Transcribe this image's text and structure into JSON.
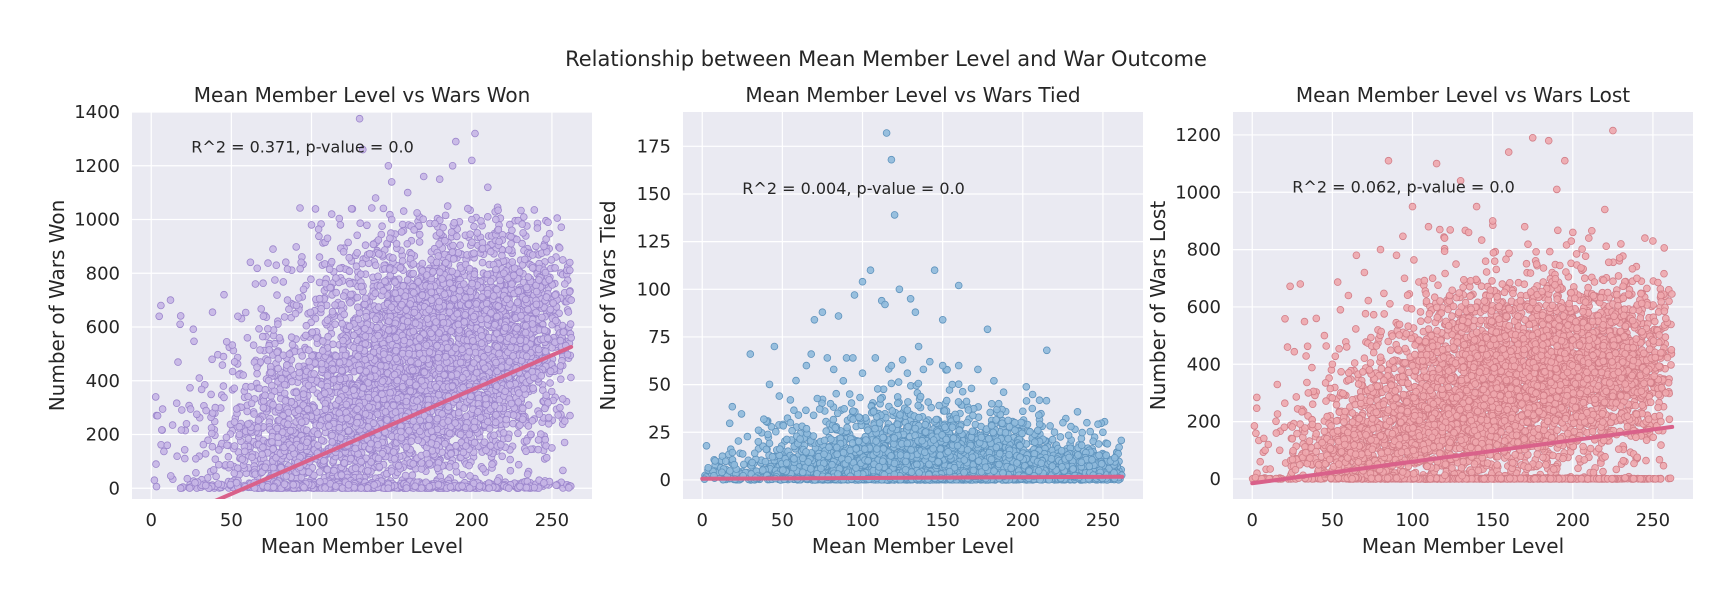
{
  "figure": {
    "suptitle": "Relationship between Mean Member Level and War Outcome"
  },
  "colors": {
    "panel_bg": "#eaeaf2",
    "grid": "#ffffff",
    "regression_line": "#d9618a",
    "won_fill": "#c7b6e6",
    "won_edge": "#9c86cc",
    "tied_fill": "#8fbadc",
    "tied_edge": "#5f93bd",
    "lost_fill": "#eea7ad",
    "lost_edge": "#d27e88"
  },
  "chart_data": [
    {
      "type": "scatter",
      "title": "Mean Member Level vs Wars Won",
      "xlabel": "Mean Member Level",
      "ylabel": "Number of Wars Won",
      "xlim": [
        -12,
        275
      ],
      "ylim": [
        -40,
        1400
      ],
      "xticks": [
        0,
        50,
        100,
        150,
        200,
        250
      ],
      "yticks": [
        0,
        200,
        400,
        600,
        800,
        1000,
        1200,
        1400
      ],
      "annotation": "R^2 = 0.371, p-value = 0.0",
      "annotation_pos": [
        25,
        1250
      ],
      "regression": {
        "slope": 2.58,
        "intercept": -150,
        "x_range": [
          0,
          262
        ]
      },
      "grid": true,
      "point_color_key": "won",
      "points": [
        [
          2,
          30
        ],
        [
          3,
          90
        ],
        [
          5,
          640
        ],
        [
          6,
          680
        ],
        [
          12,
          700
        ],
        [
          18,
          610
        ],
        [
          4,
          270
        ],
        [
          10,
          160
        ],
        [
          22,
          240
        ],
        [
          30,
          410
        ],
        [
          38,
          480
        ],
        [
          45,
          380
        ],
        [
          52,
          470
        ],
        [
          60,
          560
        ],
        [
          65,
          760
        ],
        [
          70,
          640
        ],
        [
          76,
          890
        ],
        [
          78,
          830
        ],
        [
          85,
          700
        ],
        [
          95,
          740
        ],
        [
          100,
          980
        ],
        [
          105,
          860
        ],
        [
          110,
          930
        ],
        [
          118,
          980
        ],
        [
          125,
          1040
        ],
        [
          130,
          1375
        ],
        [
          132,
          1260
        ],
        [
          140,
          1080
        ],
        [
          150,
          1140
        ],
        [
          160,
          1100
        ],
        [
          170,
          1160
        ],
        [
          180,
          1150
        ],
        [
          188,
          1200
        ],
        [
          190,
          1290
        ],
        [
          200,
          1220
        ],
        [
          202,
          1320
        ],
        [
          210,
          1120
        ],
        [
          215,
          1000
        ],
        [
          225,
          960
        ],
        [
          232,
          950
        ],
        [
          240,
          900
        ],
        [
          245,
          900
        ],
        [
          252,
          820
        ],
        [
          258,
          760
        ],
        [
          262,
          700
        ],
        [
          262,
          560
        ],
        [
          255,
          300
        ],
        [
          258,
          250
        ],
        [
          250,
          150
        ],
        [
          245,
          20
        ],
        [
          148,
          1200
        ],
        [
          150,
          1000
        ],
        [
          120,
          880
        ],
        [
          90,
          650
        ],
        [
          80,
          560
        ],
        [
          40,
          300
        ],
        [
          55,
          200
        ],
        [
          70,
          300
        ],
        [
          95,
          350
        ],
        [
          110,
          420
        ],
        [
          130,
          520
        ],
        [
          160,
          620
        ],
        [
          175,
          700
        ],
        [
          195,
          760
        ],
        [
          220,
          800
        ],
        [
          238,
          820
        ],
        [
          180,
          950
        ],
        [
          200,
          1000
        ],
        [
          210,
          1010
        ],
        [
          185,
          1050
        ]
      ],
      "clouds": [
        {
          "cx": 180,
          "cy": 560,
          "sx": 42,
          "sy": 220,
          "n": 2500,
          "xmin": 0,
          "xmax": 262,
          "ymin": 0,
          "ymax": 1050
        },
        {
          "cx": 145,
          "cy": 320,
          "sx": 45,
          "sy": 170,
          "n": 1500,
          "xmin": 0,
          "xmax": 262,
          "ymin": 0,
          "ymax": 900
        },
        {
          "cx": 95,
          "cy": 130,
          "sx": 35,
          "sy": 110,
          "n": 700,
          "xmin": 0,
          "xmax": 262,
          "ymin": 0,
          "ymax": 700
        },
        {
          "cx": 150,
          "cy": 10,
          "sx": 70,
          "sy": 8,
          "n": 500,
          "xmin": 0,
          "xmax": 262,
          "ymin": 0,
          "ymax": 60
        },
        {
          "cx": 230,
          "cy": 640,
          "sx": 18,
          "sy": 170,
          "n": 500,
          "xmin": 0,
          "xmax": 262,
          "ymin": 0,
          "ymax": 1000
        }
      ]
    },
    {
      "type": "scatter",
      "title": "Mean Member Level vs Wars Tied",
      "xlabel": "Mean Member Level",
      "ylabel": "Number of Wars Tied",
      "xlim": [
        -12,
        275
      ],
      "ylim": [
        -10,
        193
      ],
      "xticks": [
        0,
        50,
        100,
        150,
        200,
        250
      ],
      "yticks": [
        0,
        25,
        50,
        75,
        100,
        125,
        150,
        175
      ],
      "annotation": "R^2 = 0.004, p-value = 0.0",
      "annotation_pos": [
        25,
        150
      ],
      "regression": {
        "slope": 0.004,
        "intercept": 0.6,
        "x_range": [
          0,
          262
        ]
      },
      "grid": true,
      "point_color_key": "tied",
      "points": [
        [
          115,
          182
        ],
        [
          118,
          168
        ],
        [
          120,
          139
        ],
        [
          105,
          110
        ],
        [
          145,
          110
        ],
        [
          95,
          97
        ],
        [
          100,
          104
        ],
        [
          112,
          94
        ],
        [
          114,
          92
        ],
        [
          123,
          100
        ],
        [
          130,
          95
        ],
        [
          160,
          102
        ],
        [
          150,
          84
        ],
        [
          178,
          79
        ],
        [
          133,
          88
        ],
        [
          75,
          88
        ],
        [
          70,
          84
        ],
        [
          85,
          86
        ],
        [
          30,
          66
        ],
        [
          45,
          70
        ],
        [
          55,
          42
        ],
        [
          65,
          60
        ],
        [
          68,
          66
        ],
        [
          78,
          64
        ],
        [
          82,
          58
        ],
        [
          90,
          64
        ],
        [
          94,
          64
        ],
        [
          108,
          64
        ],
        [
          118,
          60
        ],
        [
          125,
          63
        ],
        [
          138,
          58
        ],
        [
          150,
          60
        ],
        [
          160,
          60
        ],
        [
          172,
          58
        ],
        [
          182,
          52
        ],
        [
          188,
          46
        ],
        [
          215,
          68
        ],
        [
          200,
          36
        ],
        [
          210,
          34
        ],
        [
          225,
          30
        ],
        [
          230,
          28
        ],
        [
          240,
          30
        ],
        [
          250,
          25
        ],
        [
          8,
          10
        ],
        [
          20,
          8
        ],
        [
          35,
          20
        ],
        [
          40,
          16
        ],
        [
          60,
          34
        ],
        [
          55,
          30
        ],
        [
          185,
          40
        ],
        [
          195,
          30
        ],
        [
          135,
          70
        ],
        [
          142,
          62
        ],
        [
          88,
          52
        ],
        [
          100,
          56
        ],
        [
          156,
          50
        ],
        [
          168,
          48
        ],
        [
          80,
          40
        ],
        [
          92,
          45
        ],
        [
          128,
          56
        ]
      ],
      "clouds": [
        {
          "cx": 130,
          "cy": 4,
          "sx": 60,
          "sy": 5,
          "n": 2200,
          "xmin": 0,
          "xmax": 262,
          "ymin": 0,
          "ymax": 40
        },
        {
          "cx": 140,
          "cy": 12,
          "sx": 50,
          "sy": 10,
          "n": 1300,
          "xmin": 0,
          "xmax": 262,
          "ymin": 0,
          "ymax": 50
        },
        {
          "cx": 130,
          "cy": 25,
          "sx": 40,
          "sy": 12,
          "n": 350,
          "xmin": 30,
          "xmax": 250,
          "ymin": 0,
          "ymax": 60
        },
        {
          "cx": 225,
          "cy": 6,
          "sx": 25,
          "sy": 5,
          "n": 600,
          "xmin": 0,
          "xmax": 262,
          "ymin": 0,
          "ymax": 30
        }
      ]
    },
    {
      "type": "scatter",
      "title": "Mean Member Level vs Wars Lost",
      "xlabel": "Mean Member Level",
      "ylabel": "Number of Wars Lost",
      "xlim": [
        -12,
        275
      ],
      "ylim": [
        -70,
        1280
      ],
      "xticks": [
        0,
        50,
        100,
        150,
        200,
        250
      ],
      "yticks": [
        0,
        200,
        400,
        600,
        800,
        1000,
        1200
      ],
      "annotation": "R^2 = 0.062, p-value = 0.0",
      "annotation_pos": [
        25,
        1000
      ],
      "regression": {
        "slope": 0.75,
        "intercept": -15,
        "x_range": [
          0,
          262
        ]
      },
      "grid": true,
      "point_color_key": "lost",
      "points": [
        [
          225,
          1215
        ],
        [
          175,
          1190
        ],
        [
          185,
          1180
        ],
        [
          160,
          1140
        ],
        [
          195,
          1110
        ],
        [
          85,
          1110
        ],
        [
          115,
          1100
        ],
        [
          130,
          1040
        ],
        [
          190,
          1010
        ],
        [
          220,
          940
        ],
        [
          100,
          950
        ],
        [
          140,
          950
        ],
        [
          150,
          900
        ],
        [
          170,
          880
        ],
        [
          200,
          860
        ],
        [
          210,
          840
        ],
        [
          230,
          820
        ],
        [
          245,
          840
        ],
        [
          250,
          830
        ],
        [
          30,
          680
        ],
        [
          22,
          460
        ],
        [
          40,
          560
        ],
        [
          45,
          500
        ],
        [
          55,
          590
        ],
        [
          60,
          640
        ],
        [
          65,
          780
        ],
        [
          70,
          720
        ],
        [
          80,
          800
        ],
        [
          90,
          780
        ],
        [
          95,
          700
        ],
        [
          110,
          880
        ],
        [
          120,
          840
        ],
        [
          135,
          860
        ],
        [
          240,
          700
        ],
        [
          255,
          640
        ],
        [
          260,
          620
        ],
        [
          258,
          560
        ],
        [
          255,
          440
        ],
        [
          258,
          300
        ],
        [
          255,
          200
        ],
        [
          10,
          120
        ],
        [
          5,
          60
        ],
        [
          15,
          160
        ],
        [
          20,
          180
        ],
        [
          25,
          140
        ],
        [
          3,
          20
        ],
        [
          2,
          5
        ],
        [
          8,
          100
        ],
        [
          35,
          300
        ],
        [
          50,
          400
        ]
      ],
      "clouds": [
        {
          "cx": 170,
          "cy": 380,
          "sx": 45,
          "sy": 165,
          "n": 2700,
          "xmin": 0,
          "xmax": 262,
          "ymin": 0,
          "ymax": 900
        },
        {
          "cx": 120,
          "cy": 180,
          "sx": 45,
          "sy": 120,
          "n": 1300,
          "xmin": 0,
          "xmax": 262,
          "ymin": 0,
          "ymax": 700
        },
        {
          "cx": 150,
          "cy": 0,
          "sx": 80,
          "sy": 1,
          "n": 500,
          "xmin": 0,
          "xmax": 262,
          "ymin": 0,
          "ymax": 5
        },
        {
          "cx": 70,
          "cy": 90,
          "sx": 25,
          "sy": 70,
          "n": 400,
          "xmin": 0,
          "xmax": 262,
          "ymin": 0,
          "ymax": 500
        },
        {
          "cx": 230,
          "cy": 420,
          "sx": 18,
          "sy": 150,
          "n": 500,
          "xmin": 0,
          "xmax": 262,
          "ymin": 0,
          "ymax": 800
        }
      ]
    }
  ]
}
